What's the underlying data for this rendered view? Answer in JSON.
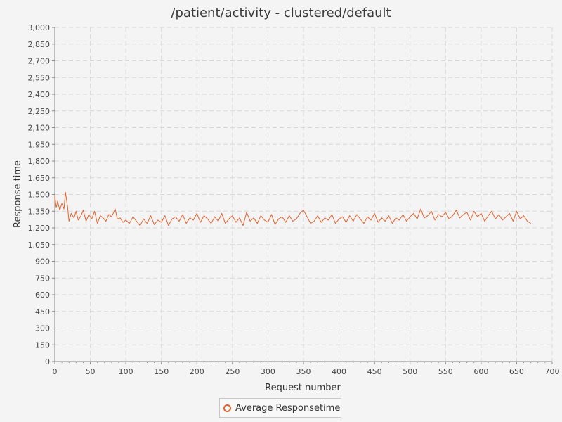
{
  "chart_data": {
    "type": "line",
    "title": "/patient/activity - clustered/default",
    "xlabel": "Request number",
    "ylabel": "Response time",
    "xlim": [
      0,
      700
    ],
    "ylim": [
      0,
      3000
    ],
    "xticks": [
      0,
      50,
      100,
      150,
      200,
      250,
      300,
      350,
      400,
      450,
      500,
      550,
      600,
      650,
      700
    ],
    "yticks": [
      0,
      150,
      300,
      450,
      600,
      750,
      900,
      1050,
      1200,
      1350,
      1500,
      1650,
      1800,
      1950,
      2100,
      2250,
      2400,
      2550,
      2700,
      2850,
      3000
    ],
    "ytick_labels": [
      "0",
      "150",
      "300",
      "450",
      "600",
      "750",
      "900",
      "1,050",
      "1,200",
      "1,350",
      "1,500",
      "1,650",
      "1,800",
      "1,950",
      "2,100",
      "2,250",
      "2,400",
      "2,550",
      "2,700",
      "2,850",
      "3,000"
    ],
    "grid": true,
    "legend_position": "bottom-center",
    "series": [
      {
        "name": "Average Responsetime",
        "color": "#e8612c",
        "x": [
          0,
          2,
          4,
          7,
          10,
          13,
          15,
          18,
          20,
          23,
          27,
          30,
          33,
          37,
          40,
          44,
          48,
          52,
          56,
          60,
          64,
          68,
          72,
          76,
          80,
          85,
          88,
          92,
          96,
          100,
          105,
          110,
          115,
          120,
          125,
          130,
          135,
          140,
          145,
          150,
          155,
          160,
          165,
          170,
          175,
          180,
          185,
          190,
          195,
          200,
          205,
          210,
          215,
          220,
          225,
          230,
          235,
          240,
          245,
          250,
          255,
          260,
          265,
          270,
          275,
          280,
          285,
          290,
          295,
          300,
          305,
          310,
          315,
          320,
          325,
          330,
          335,
          340,
          345,
          350,
          355,
          360,
          365,
          370,
          375,
          380,
          385,
          390,
          395,
          400,
          405,
          410,
          415,
          420,
          425,
          430,
          435,
          440,
          445,
          450,
          455,
          460,
          465,
          470,
          475,
          480,
          485,
          490,
          495,
          500,
          505,
          510,
          515,
          520,
          525,
          530,
          535,
          540,
          545,
          550,
          555,
          560,
          565,
          570,
          575,
          580,
          585,
          590,
          595,
          600,
          605,
          610,
          615,
          620,
          625,
          630,
          635,
          640,
          645,
          650,
          655,
          660,
          665,
          670
        ],
        "values": [
          1490,
          1380,
          1440,
          1360,
          1420,
          1370,
          1520,
          1390,
          1260,
          1330,
          1290,
          1350,
          1270,
          1310,
          1360,
          1260,
          1320,
          1280,
          1350,
          1240,
          1310,
          1290,
          1260,
          1320,
          1300,
          1370,
          1280,
          1290,
          1250,
          1270,
          1240,
          1300,
          1260,
          1220,
          1280,
          1240,
          1310,
          1230,
          1270,
          1250,
          1310,
          1220,
          1280,
          1300,
          1260,
          1320,
          1240,
          1290,
          1270,
          1330,
          1250,
          1310,
          1280,
          1240,
          1300,
          1260,
          1330,
          1240,
          1280,
          1310,
          1250,
          1290,
          1220,
          1340,
          1260,
          1290,
          1240,
          1310,
          1270,
          1250,
          1320,
          1230,
          1280,
          1300,
          1250,
          1310,
          1260,
          1280,
          1330,
          1360,
          1300,
          1240,
          1260,
          1310,
          1250,
          1290,
          1270,
          1320,
          1240,
          1280,
          1300,
          1250,
          1310,
          1260,
          1320,
          1280,
          1240,
          1300,
          1270,
          1330,
          1250,
          1290,
          1260,
          1310,
          1240,
          1290,
          1270,
          1320,
          1260,
          1300,
          1330,
          1280,
          1370,
          1290,
          1310,
          1350,
          1270,
          1320,
          1300,
          1340,
          1280,
          1310,
          1360,
          1290,
          1320,
          1340,
          1270,
          1350,
          1300,
          1330,
          1260,
          1310,
          1350,
          1280,
          1320,
          1270,
          1300,
          1330,
          1260,
          1350,
          1280,
          1310,
          1260,
          1240
        ]
      }
    ]
  },
  "legend": {
    "label": "Average Responsetime"
  }
}
